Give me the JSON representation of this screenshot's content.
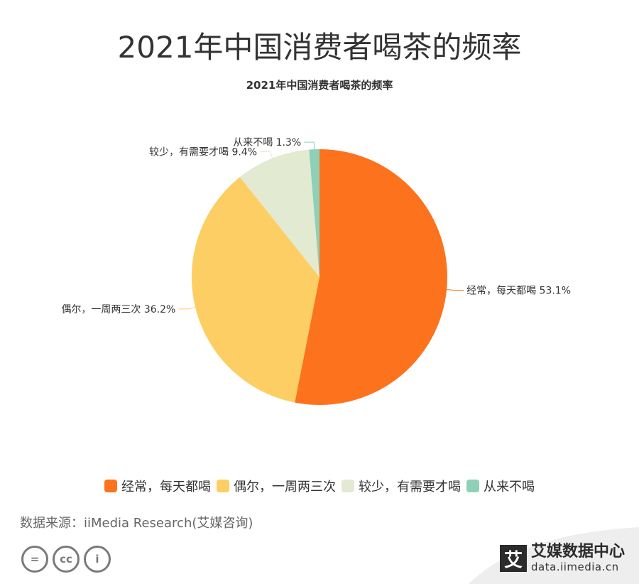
{
  "page": {
    "title": "2021年中国消费者喝茶的频率",
    "source": "数据来源：iiMedia Research(艾媒咨询)",
    "brand": {
      "logo_char": "艾",
      "name": "艾媒数据中心",
      "url": "data.iimedia.cn"
    },
    "license_icons": [
      "=",
      "cc",
      "i"
    ]
  },
  "chart_data": {
    "type": "pie",
    "title": "2021年中国消费者喝茶的频率",
    "slices": [
      {
        "label": "经常，每天都喝",
        "value": 53.1,
        "color": "#fd721c",
        "display": "经常，每天都喝 53.1%"
      },
      {
        "label": "偶尔，一周两三次",
        "value": 36.2,
        "color": "#fdce63",
        "display": "偶尔，一周两三次 36.2%"
      },
      {
        "label": "较少，有需要才喝",
        "value": 9.4,
        "color": "#e2ead2",
        "display": "较少，有需要才喝 9.4%"
      },
      {
        "label": "从来不喝",
        "value": 1.3,
        "color": "#8ed0b8",
        "display": "从来不喝 1.3%"
      }
    ],
    "legend_position": "bottom"
  }
}
